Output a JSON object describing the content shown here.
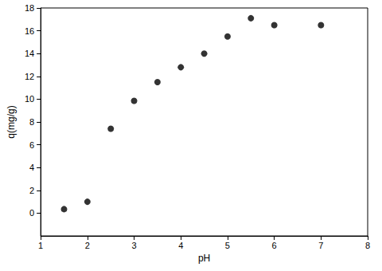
{
  "chart_data": {
    "type": "scatter",
    "x_label": "pH",
    "y_label": "q(mg/g)",
    "x": [
      1.5,
      2,
      2.5,
      3,
      3.5,
      4,
      4.5,
      5,
      5.5,
      6,
      7
    ],
    "values": [
      0.35,
      1.0,
      7.4,
      9.85,
      11.5,
      12.8,
      14.0,
      15.5,
      17.1,
      16.5,
      16.5
    ],
    "color": "#000000",
    "marker": "circle",
    "xlim": [
      1,
      8
    ],
    "xticks": [
      1,
      2,
      3,
      4,
      5,
      6,
      7,
      8
    ],
    "ylim": [
      -2,
      18
    ],
    "yticks": [
      0,
      2,
      4,
      6,
      8,
      10,
      12,
      14,
      16,
      18
    ],
    "grid": false
  }
}
